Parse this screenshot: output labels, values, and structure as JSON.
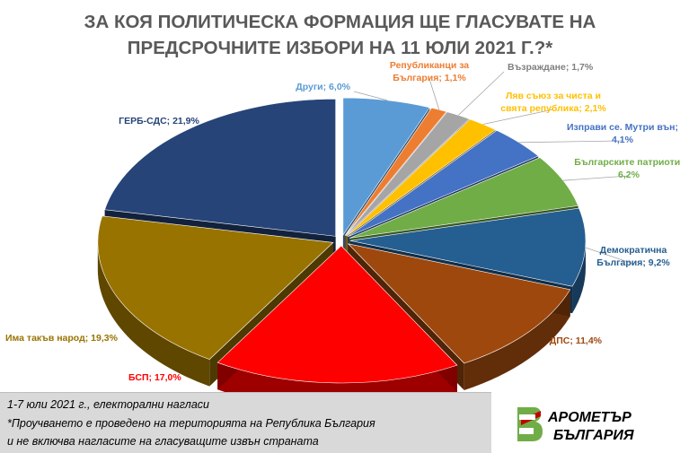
{
  "title": {
    "line1": "ЗА КОЯ ПОЛИТИЧЕСКА ФОРМАЦИЯ ЩЕ ГЛАСУВАТЕ НА",
    "line2": "ПРЕДСРОЧНИТЕ ИЗБОРИ НА 11 ЮЛИ 2021 Г.?*"
  },
  "chart_data": {
    "type": "pie",
    "style": "3d-exploded",
    "legend": "none",
    "slices": [
      {
        "label": "Други",
        "value": 6.0,
        "display": "Други; 6,0%",
        "color": "#5b9bd5"
      },
      {
        "label": "Републиканци за България",
        "value": 1.1,
        "display": [
          "Републиканци за",
          "България; 1,1%"
        ],
        "color": "#ed7d31"
      },
      {
        "label": "Възраждане",
        "value": 1.7,
        "display": "Възраждане; 1,7%",
        "color": "#a5a5a5"
      },
      {
        "label": "Ляв съюз за чиста и свята република",
        "value": 2.1,
        "display": [
          "Ляв съюз за чиста и",
          "свята република; 2,1%"
        ],
        "color": "#ffc000"
      },
      {
        "label": "Изправи се. Мутри вън",
        "value": 4.1,
        "display": [
          "Изправи се. Мутри вън;",
          "4,1%"
        ],
        "color": "#4472c4"
      },
      {
        "label": "Българските патриоти",
        "value": 6.2,
        "display": [
          "Българските патриоти;",
          "6,2%"
        ],
        "color": "#70ad47"
      },
      {
        "label": "Демократична България",
        "value": 9.2,
        "display": [
          "Демократична",
          "България; 9,2%"
        ],
        "color": "#255e91"
      },
      {
        "label": "ДПС",
        "value": 11.4,
        "display": "ДПС; 11,4%",
        "color": "#9e480e"
      },
      {
        "label": "БСП",
        "value": 17.0,
        "display": "БСП; 17,0%",
        "color": "#ff0000"
      },
      {
        "label": "Има такъв народ",
        "value": 19.3,
        "display": "Има такъв народ; 19,3%",
        "color": "#997300"
      },
      {
        "label": "ГЕРБ-СДС",
        "value": 21.9,
        "display": "ГЕРБ-СДС; 21,9%",
        "color": "#264478"
      }
    ]
  },
  "footer": {
    "line1": "1-7 юли 2021 г., електорални нагласи",
    "line2": "*Проучването е проведено на територията на Република България",
    "line3": "и не включва нагласите на гласуващите извън страната"
  },
  "logo": {
    "line1": "АРОМЕТЪР",
    "line2": "БЪЛГАРИЯ",
    "icon": "b-letter-logo-icon"
  }
}
